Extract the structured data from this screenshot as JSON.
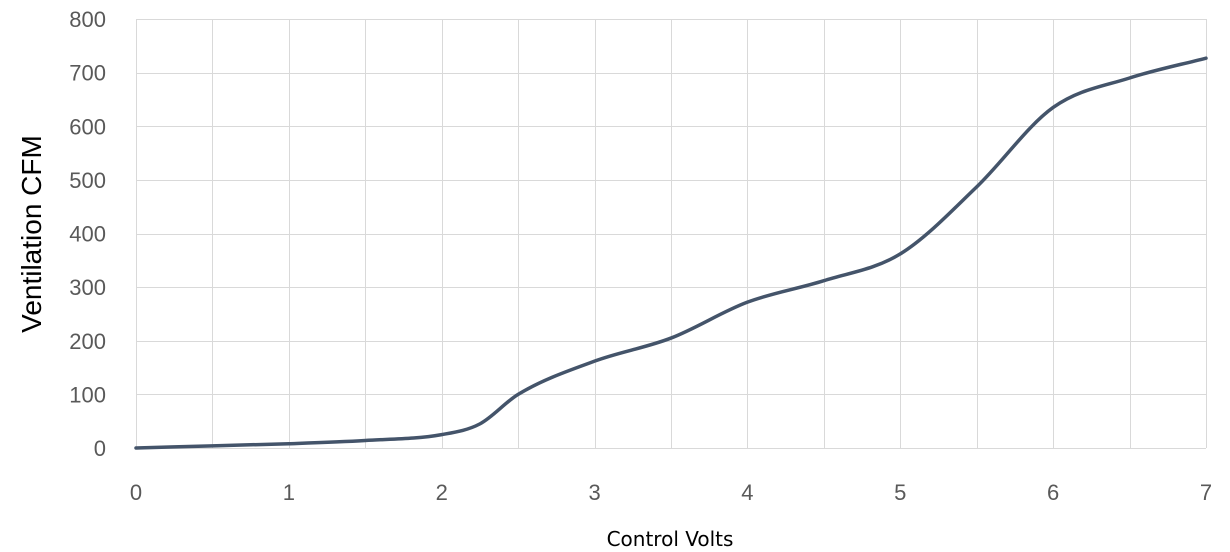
{
  "chart_data": {
    "type": "line",
    "title": "",
    "xlabel": "Control Volts",
    "ylabel": "Ventilation CFM",
    "xlim": [
      0,
      7
    ],
    "ylim": [
      0,
      800
    ],
    "x_ticks": [
      "0",
      "1",
      "2",
      "3",
      "4",
      "5",
      "6",
      "7"
    ],
    "y_ticks": [
      "0",
      "100",
      "200",
      "300",
      "400",
      "500",
      "600",
      "700",
      "800"
    ],
    "grid": true,
    "legend": "none",
    "series": [
      {
        "color": "#44546A",
        "x": [
          0,
          0.5,
          1,
          1.5,
          2,
          2.25,
          2.5,
          3,
          3.5,
          4,
          4.5,
          5,
          5.5,
          6,
          6.5,
          7
        ],
        "y": [
          0,
          4,
          8,
          14,
          25,
          45,
          100,
          162,
          205,
          272,
          312,
          362,
          487,
          635,
          690,
          727
        ]
      }
    ]
  }
}
